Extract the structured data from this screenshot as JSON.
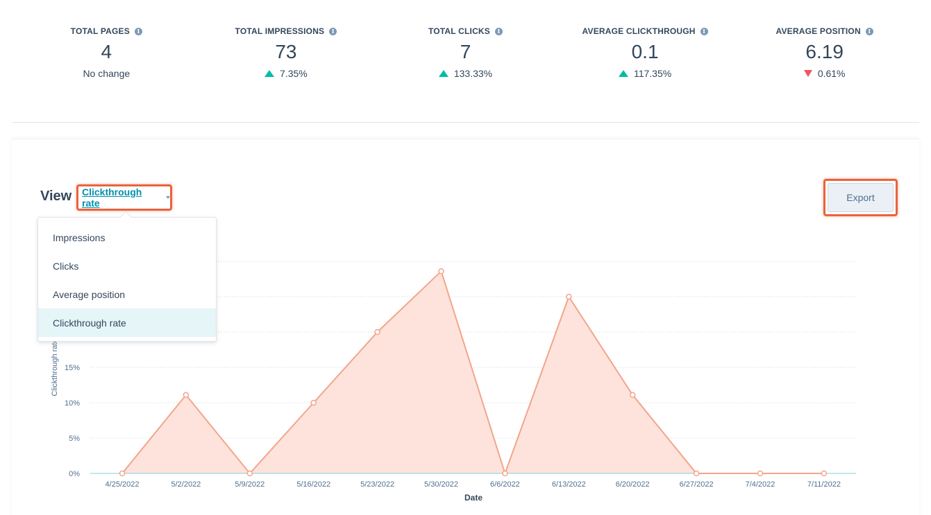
{
  "kpis": [
    {
      "label": "TOTAL PAGES",
      "value": "4",
      "change": "No change",
      "trend": "none"
    },
    {
      "label": "TOTAL IMPRESSIONS",
      "value": "73",
      "change": "7.35%",
      "trend": "up"
    },
    {
      "label": "TOTAL CLICKS",
      "value": "7",
      "change": "133.33%",
      "trend": "up"
    },
    {
      "label": "AVERAGE CLICKTHROUGH",
      "value": "0.1",
      "change": "117.35%",
      "trend": "up"
    },
    {
      "label": "AVERAGE POSITION",
      "value": "6.19",
      "change": "0.61%",
      "trend": "down"
    }
  ],
  "view": {
    "label": "View",
    "selected": "Clickthrough rate",
    "options": [
      "Impressions",
      "Clicks",
      "Average position",
      "Clickthrough rate"
    ]
  },
  "export_label": "Export",
  "colors": {
    "line": "#f2a58b",
    "fill": "#fde3dc",
    "highlight": "#e8643c",
    "up": "#00bda5",
    "down": "#f2545b"
  },
  "chart_data": {
    "type": "area",
    "x": [
      "4/25/2022",
      "5/2/2022",
      "5/9/2022",
      "5/16/2022",
      "5/23/2022",
      "5/30/2022",
      "6/6/2022",
      "6/13/2022",
      "6/20/2022",
      "6/27/2022",
      "7/4/2022",
      "7/11/2022"
    ],
    "series": [
      {
        "values": [
          0,
          11.1,
          0,
          10,
          20,
          28.6,
          0,
          25,
          11.1,
          0,
          0,
          0
        ]
      }
    ],
    "ylabel": "Clickthrough rate",
    "xlabel": "Date",
    "yticks": [
      "0%",
      "5%",
      "10%",
      "15%"
    ],
    "ylim": [
      0,
      30
    ],
    "grid": true
  }
}
